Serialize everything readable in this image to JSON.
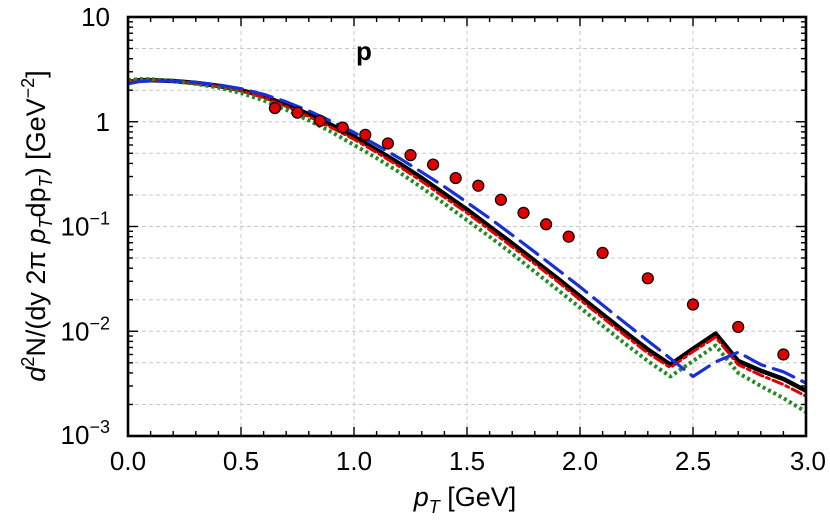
{
  "chart_data": {
    "type": "line",
    "title": "",
    "panel_label": "p",
    "xlabel": {
      "main": "p",
      "sub": "T",
      "unit": " [GeV]"
    },
    "ylabel": {
      "parts": [
        {
          "t": "d",
          "s": "italic"
        },
        {
          "t": "2",
          "s": "sup"
        },
        {
          "t": "N/(dy 2",
          "s": ""
        },
        {
          "t": "π",
          "s": ""
        },
        {
          "t": " p",
          "s": "italic"
        },
        {
          "t": "T",
          "s": "sub-italic"
        },
        {
          "t": "dp",
          "s": ""
        },
        {
          "t": "T",
          "s": "sub-italic"
        },
        {
          "t": ") [GeV",
          "s": ""
        },
        {
          "t": "−2",
          "s": "sup"
        },
        {
          "t": "]",
          "s": ""
        }
      ]
    },
    "xlim": [
      0.0,
      3.0
    ],
    "ylim": [
      0.001,
      10
    ],
    "yscale": "log",
    "x_ticks": [
      "0.0",
      "0.5",
      "1.0",
      "1.5",
      "2.0",
      "2.5",
      "3.0"
    ],
    "x_tick_values": [
      0.0,
      0.5,
      1.0,
      1.5,
      2.0,
      2.5,
      3.0
    ],
    "y_ticks": [
      {
        "value": 10,
        "base": "10",
        "exp": ""
      },
      {
        "value": 1,
        "base": "1",
        "exp": ""
      },
      {
        "value": 0.1,
        "base": "10",
        "exp": "−1"
      },
      {
        "value": 0.01,
        "base": "10",
        "exp": "−2"
      },
      {
        "value": 0.001,
        "base": "10",
        "exp": "−3"
      }
    ],
    "grid": true,
    "legend": "none",
    "series": [
      {
        "style": "solid",
        "color": "#000000",
        "width": 4.5,
        "x": [
          0.0,
          0.05,
          0.1,
          0.2,
          0.3,
          0.4,
          0.5,
          0.6,
          0.7,
          0.8,
          0.9,
          1.0,
          1.1,
          1.2,
          1.3,
          1.4,
          1.5,
          1.6,
          1.7,
          1.8,
          1.9,
          2.0,
          2.1,
          2.2,
          2.3,
          2.4,
          2.5,
          2.6,
          2.7,
          2.8,
          2.9,
          3.0
        ],
        "y": [
          2.4,
          2.5,
          2.5,
          2.45,
          2.35,
          2.2,
          2.0,
          1.75,
          1.45,
          1.18,
          0.93,
          0.72,
          0.54,
          0.4,
          0.29,
          0.205,
          0.145,
          0.1,
          0.069,
          0.047,
          0.032,
          0.0215,
          0.0145,
          0.0098,
          0.0067,
          0.0048,
          0.0068,
          0.0095,
          0.0052,
          0.0042,
          0.0035,
          0.0027
        ]
      },
      {
        "style": "dash-dot",
        "color": "#e00000",
        "width": 3,
        "x": [
          0.0,
          0.05,
          0.1,
          0.2,
          0.3,
          0.4,
          0.5,
          0.6,
          0.7,
          0.8,
          0.9,
          1.0,
          1.1,
          1.2,
          1.3,
          1.4,
          1.5,
          1.6,
          1.7,
          1.8,
          1.9,
          2.0,
          2.1,
          2.2,
          2.3,
          2.4,
          2.5,
          2.6,
          2.7,
          2.8,
          2.9,
          3.0
        ],
        "y": [
          2.45,
          2.5,
          2.5,
          2.45,
          2.33,
          2.18,
          1.97,
          1.7,
          1.4,
          1.12,
          0.88,
          0.68,
          0.51,
          0.375,
          0.27,
          0.19,
          0.135,
          0.093,
          0.064,
          0.044,
          0.03,
          0.02,
          0.0135,
          0.0091,
          0.0062,
          0.0045,
          0.0064,
          0.0088,
          0.0048,
          0.0038,
          0.0031,
          0.0024
        ]
      },
      {
        "style": "dotted",
        "color": "#228b22",
        "width": 4,
        "x": [
          0.0,
          0.05,
          0.1,
          0.2,
          0.3,
          0.4,
          0.5,
          0.6,
          0.7,
          0.8,
          0.9,
          1.0,
          1.1,
          1.2,
          1.3,
          1.4,
          1.5,
          1.6,
          1.7,
          1.8,
          1.9,
          2.0,
          2.1,
          2.2,
          2.3,
          2.4,
          2.5,
          2.6,
          2.7,
          2.8,
          2.9,
          3.0
        ],
        "y": [
          2.5,
          2.55,
          2.55,
          2.45,
          2.3,
          2.12,
          1.88,
          1.6,
          1.3,
          1.03,
          0.8,
          0.6,
          0.45,
          0.33,
          0.235,
          0.165,
          0.115,
          0.08,
          0.055,
          0.037,
          0.025,
          0.0168,
          0.0113,
          0.0076,
          0.0052,
          0.0037,
          0.0052,
          0.0073,
          0.004,
          0.003,
          0.0023,
          0.0017
        ]
      },
      {
        "style": "dashed",
        "color": "#1a2fd6",
        "width": 3.2,
        "x": [
          0.0,
          0.05,
          0.1,
          0.2,
          0.3,
          0.4,
          0.5,
          0.6,
          0.7,
          0.8,
          0.9,
          1.0,
          1.1,
          1.2,
          1.3,
          1.4,
          1.5,
          1.6,
          1.7,
          1.8,
          1.9,
          2.0,
          2.1,
          2.2,
          2.3,
          2.4,
          2.5,
          2.6,
          2.7,
          2.8,
          2.9,
          3.0
        ],
        "y": [
          2.3,
          2.42,
          2.45,
          2.45,
          2.38,
          2.25,
          2.07,
          1.83,
          1.55,
          1.27,
          1.01,
          0.79,
          0.6,
          0.45,
          0.33,
          0.24,
          0.17,
          0.12,
          0.083,
          0.057,
          0.039,
          0.0265,
          0.0178,
          0.012,
          0.0081,
          0.0055,
          0.0037,
          0.0051,
          0.0063,
          0.0048,
          0.0041,
          0.0032
        ]
      }
    ],
    "points": {
      "color": "#e00000",
      "stroke": "#000000",
      "x": [
        0.65,
        0.75,
        0.85,
        0.95,
        1.05,
        1.15,
        1.25,
        1.35,
        1.45,
        1.55,
        1.65,
        1.75,
        1.85,
        1.95,
        2.1,
        2.3,
        2.5,
        2.7,
        2.9
      ],
      "y": [
        1.35,
        1.22,
        1.02,
        0.88,
        0.75,
        0.62,
        0.48,
        0.39,
        0.29,
        0.245,
        0.18,
        0.135,
        0.105,
        0.08,
        0.056,
        0.032,
        0.018,
        0.011,
        0.006
      ]
    }
  }
}
